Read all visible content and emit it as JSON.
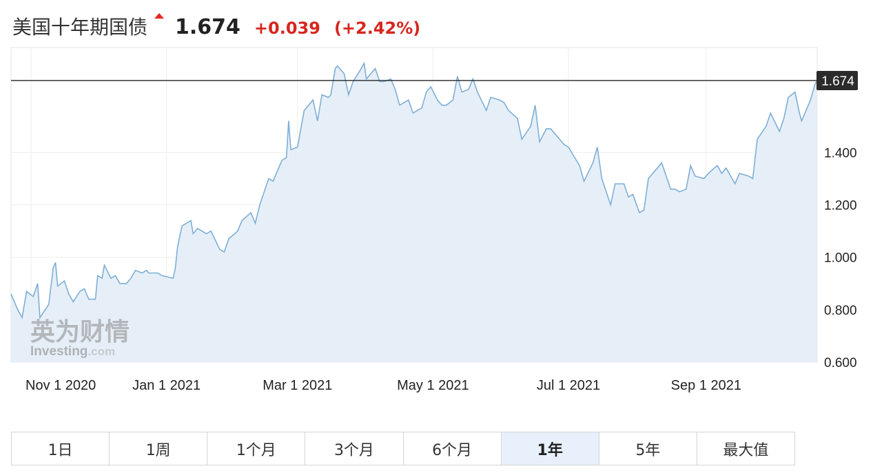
{
  "header": {
    "instrument_name": "美国十年期国债",
    "price": "1.674",
    "change": "+0.039",
    "change_pct": "(+2.42%)",
    "up_color": "#d7261e",
    "direction_icon": "up-triangle-icon"
  },
  "watermark": {
    "brand_cn": "英为财情",
    "brand_en": "Investing",
    "brand_suffix": ".com"
  },
  "ranges": [
    {
      "label": "1日",
      "active": false
    },
    {
      "label": "1周",
      "active": false
    },
    {
      "label": "1个月",
      "active": false
    },
    {
      "label": "3个月",
      "active": false
    },
    {
      "label": "6个月",
      "active": false
    },
    {
      "label": "1年",
      "active": true
    },
    {
      "label": "5年",
      "active": false
    },
    {
      "label": "最大值",
      "active": false
    }
  ],
  "chart_data": {
    "type": "area",
    "title": "",
    "xlabel": "",
    "ylabel": "",
    "x_start": "2020-10-23",
    "x_end": "2021-10-21",
    "ylim": [
      0.6,
      1.8
    ],
    "y_ticks": [
      "0.600",
      "0.800",
      "1.000",
      "1.200",
      "1.400"
    ],
    "x_ticks": [
      {
        "date": "2020-11-01",
        "label": "Nov 1 2020"
      },
      {
        "date": "2021-01-01",
        "label": "Jan 1 2021"
      },
      {
        "date": "2021-03-01",
        "label": "Mar 1 2021"
      },
      {
        "date": "2021-05-01",
        "label": "May 1 2021"
      },
      {
        "date": "2021-07-01",
        "label": "Jul 1 2021"
      },
      {
        "date": "2021-09-01",
        "label": "Sep 1 2021"
      }
    ],
    "last_value": 1.674,
    "last_value_label": "1.674",
    "line_color": "#7eaed6",
    "fill_color": "#e6eff8",
    "grid": true,
    "series": [
      {
        "points": [
          [
            "2020-10-23",
            0.86
          ],
          [
            "2020-10-26",
            0.8
          ],
          [
            "2020-10-28",
            0.77
          ],
          [
            "2020-10-30",
            0.87
          ],
          [
            "2020-11-02",
            0.85
          ],
          [
            "2020-11-04",
            0.9
          ],
          [
            "2020-11-05",
            0.77
          ],
          [
            "2020-11-09",
            0.82
          ],
          [
            "2020-11-11",
            0.96
          ],
          [
            "2020-11-12",
            0.98
          ],
          [
            "2020-11-13",
            0.89
          ],
          [
            "2020-11-16",
            0.91
          ],
          [
            "2020-11-18",
            0.86
          ],
          [
            "2020-11-20",
            0.83
          ],
          [
            "2020-11-23",
            0.87
          ],
          [
            "2020-11-25",
            0.88
          ],
          [
            "2020-11-27",
            0.84
          ],
          [
            "2020-11-30",
            0.84
          ],
          [
            "2020-12-01",
            0.93
          ],
          [
            "2020-12-03",
            0.92
          ],
          [
            "2020-12-04",
            0.97
          ],
          [
            "2020-12-07",
            0.92
          ],
          [
            "2020-12-09",
            0.93
          ],
          [
            "2020-12-11",
            0.9
          ],
          [
            "2020-12-14",
            0.9
          ],
          [
            "2020-12-16",
            0.92
          ],
          [
            "2020-12-18",
            0.95
          ],
          [
            "2020-12-21",
            0.94
          ],
          [
            "2020-12-23",
            0.95
          ],
          [
            "2020-12-24",
            0.94
          ],
          [
            "2020-12-28",
            0.94
          ],
          [
            "2020-12-30",
            0.93
          ],
          [
            "2021-01-04",
            0.92
          ],
          [
            "2021-01-05",
            0.96
          ],
          [
            "2021-01-06",
            1.04
          ],
          [
            "2021-01-08",
            1.12
          ],
          [
            "2021-01-12",
            1.14
          ],
          [
            "2021-01-13",
            1.09
          ],
          [
            "2021-01-15",
            1.11
          ],
          [
            "2021-01-19",
            1.09
          ],
          [
            "2021-01-21",
            1.1
          ],
          [
            "2021-01-25",
            1.03
          ],
          [
            "2021-01-27",
            1.02
          ],
          [
            "2021-01-29",
            1.07
          ],
          [
            "2021-02-02",
            1.1
          ],
          [
            "2021-02-04",
            1.14
          ],
          [
            "2021-02-08",
            1.17
          ],
          [
            "2021-02-10",
            1.13
          ],
          [
            "2021-02-12",
            1.2
          ],
          [
            "2021-02-16",
            1.3
          ],
          [
            "2021-02-18",
            1.29
          ],
          [
            "2021-02-22",
            1.37
          ],
          [
            "2021-02-24",
            1.38
          ],
          [
            "2021-02-25",
            1.52
          ],
          [
            "2021-02-26",
            1.41
          ],
          [
            "2021-03-01",
            1.42
          ],
          [
            "2021-03-04",
            1.56
          ],
          [
            "2021-03-08",
            1.6
          ],
          [
            "2021-03-10",
            1.52
          ],
          [
            "2021-03-12",
            1.62
          ],
          [
            "2021-03-15",
            1.61
          ],
          [
            "2021-03-16",
            1.62
          ],
          [
            "2021-03-18",
            1.72
          ],
          [
            "2021-03-19",
            1.73
          ],
          [
            "2021-03-22",
            1.7
          ],
          [
            "2021-03-24",
            1.62
          ],
          [
            "2021-03-26",
            1.67
          ],
          [
            "2021-03-29",
            1.71
          ],
          [
            "2021-03-31",
            1.74
          ],
          [
            "2021-04-01",
            1.68
          ],
          [
            "2021-04-05",
            1.72
          ],
          [
            "2021-04-07",
            1.67
          ],
          [
            "2021-04-09",
            1.67
          ],
          [
            "2021-04-12",
            1.68
          ],
          [
            "2021-04-14",
            1.64
          ],
          [
            "2021-04-16",
            1.58
          ],
          [
            "2021-04-20",
            1.6
          ],
          [
            "2021-04-22",
            1.55
          ],
          [
            "2021-04-26",
            1.57
          ],
          [
            "2021-04-28",
            1.63
          ],
          [
            "2021-04-30",
            1.65
          ],
          [
            "2021-05-03",
            1.6
          ],
          [
            "2021-05-05",
            1.58
          ],
          [
            "2021-05-07",
            1.58
          ],
          [
            "2021-05-10",
            1.6
          ],
          [
            "2021-05-12",
            1.69
          ],
          [
            "2021-05-14",
            1.63
          ],
          [
            "2021-05-17",
            1.64
          ],
          [
            "2021-05-19",
            1.68
          ],
          [
            "2021-05-21",
            1.63
          ],
          [
            "2021-05-25",
            1.56
          ],
          [
            "2021-05-27",
            1.61
          ],
          [
            "2021-05-31",
            1.6
          ],
          [
            "2021-06-02",
            1.59
          ],
          [
            "2021-06-04",
            1.56
          ],
          [
            "2021-06-08",
            1.53
          ],
          [
            "2021-06-10",
            1.45
          ],
          [
            "2021-06-14",
            1.5
          ],
          [
            "2021-06-16",
            1.58
          ],
          [
            "2021-06-18",
            1.44
          ],
          [
            "2021-06-21",
            1.49
          ],
          [
            "2021-06-23",
            1.49
          ],
          [
            "2021-06-25",
            1.47
          ],
          [
            "2021-06-29",
            1.43
          ],
          [
            "2021-07-01",
            1.42
          ],
          [
            "2021-07-06",
            1.35
          ],
          [
            "2021-07-08",
            1.29
          ],
          [
            "2021-07-12",
            1.36
          ],
          [
            "2021-07-14",
            1.42
          ],
          [
            "2021-07-16",
            1.3
          ],
          [
            "2021-07-20",
            1.2
          ],
          [
            "2021-07-22",
            1.28
          ],
          [
            "2021-07-26",
            1.28
          ],
          [
            "2021-07-28",
            1.23
          ],
          [
            "2021-07-30",
            1.24
          ],
          [
            "2021-08-02",
            1.17
          ],
          [
            "2021-08-04",
            1.18
          ],
          [
            "2021-08-06",
            1.3
          ],
          [
            "2021-08-10",
            1.34
          ],
          [
            "2021-08-12",
            1.36
          ],
          [
            "2021-08-16",
            1.26
          ],
          [
            "2021-08-18",
            1.26
          ],
          [
            "2021-08-20",
            1.25
          ],
          [
            "2021-08-23",
            1.26
          ],
          [
            "2021-08-25",
            1.35
          ],
          [
            "2021-08-27",
            1.31
          ],
          [
            "2021-08-31",
            1.3
          ],
          [
            "2021-09-02",
            1.32
          ],
          [
            "2021-09-06",
            1.35
          ],
          [
            "2021-09-08",
            1.32
          ],
          [
            "2021-09-10",
            1.34
          ],
          [
            "2021-09-14",
            1.28
          ],
          [
            "2021-09-16",
            1.32
          ],
          [
            "2021-09-20",
            1.31
          ],
          [
            "2021-09-22",
            1.3
          ],
          [
            "2021-09-24",
            1.45
          ],
          [
            "2021-09-28",
            1.5
          ],
          [
            "2021-09-30",
            1.55
          ],
          [
            "2021-10-04",
            1.48
          ],
          [
            "2021-10-06",
            1.53
          ],
          [
            "2021-10-08",
            1.61
          ],
          [
            "2021-10-11",
            1.63
          ],
          [
            "2021-10-13",
            1.55
          ],
          [
            "2021-10-14",
            1.52
          ],
          [
            "2021-10-18",
            1.6
          ],
          [
            "2021-10-20",
            1.66
          ],
          [
            "2021-10-21",
            1.674
          ]
        ]
      }
    ]
  }
}
